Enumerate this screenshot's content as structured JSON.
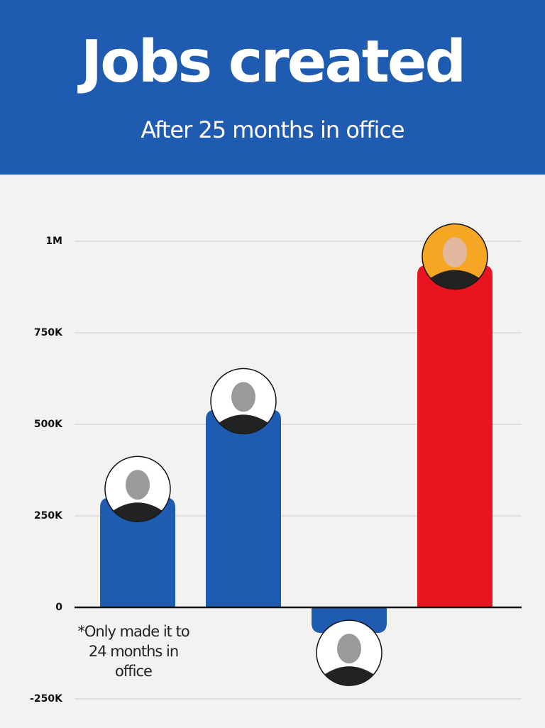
{
  "chart_data": {
    "type": "bar",
    "title": "Jobs created",
    "subtitle": "After 25 months in office",
    "categories": [
      null,
      null,
      null,
      null
    ],
    "values": [
      300000,
      540000,
      -70000,
      935000
    ],
    "colors": [
      "#1f5bb0",
      "#1f5bb0",
      "#1f5bb0",
      "#e8141f"
    ],
    "annotation": "*Only made it to 24 months in office",
    "ylim": [
      -250000,
      1000000
    ],
    "yticks": [
      {
        "value": -250000,
        "label": "-250K"
      },
      0,
      {
        "value": 250000,
        "label": "250K"
      },
      {
        "value": 500000,
        "label": "500K"
      },
      {
        "value": 750000,
        "label": "750K"
      },
      {
        "value": 1000000,
        "label": "1M"
      }
    ],
    "grid": true
  }
}
